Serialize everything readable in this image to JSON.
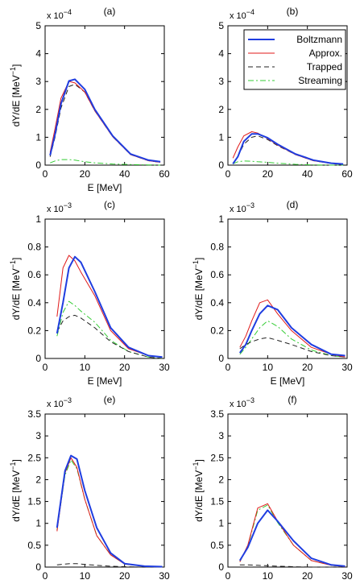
{
  "chart_data": [
    {
      "type": "line",
      "panel_label": "(a)",
      "xlabel": "E [MeV]",
      "ylabel": "dY/dE [MeV",
      "ylabel_sup": "−1",
      "ylabel_close": "]",
      "exponent_base": "x 10",
      "exponent_power": "−4",
      "xlim": [
        0,
        60
      ],
      "ylim": [
        0,
        5
      ],
      "xticks": [
        0,
        20,
        40,
        60
      ],
      "yticks": [
        0,
        1,
        2,
        3,
        4,
        5
      ],
      "series": [
        {
          "name": "Boltzmann",
          "color": "#1f3de0",
          "dash": "solid",
          "width": 2,
          "x": [
            2.5,
            5,
            8,
            12,
            15,
            20,
            25,
            34,
            43,
            52,
            58
          ],
          "y": [
            0.35,
            1.1,
            2.2,
            3.02,
            3.08,
            2.72,
            2.0,
            1.05,
            0.4,
            0.18,
            0.12
          ]
        },
        {
          "name": "Approx.",
          "color": "#e01a1a",
          "dash": "solid",
          "width": 1,
          "x": [
            2.5,
            5,
            8,
            12,
            15,
            20,
            25,
            34,
            43,
            52,
            58
          ],
          "y": [
            0.45,
            1.3,
            2.4,
            3.0,
            2.95,
            2.62,
            1.95,
            1.02,
            0.38,
            0.16,
            0.1
          ]
        },
        {
          "name": "Trapped",
          "color": "#222222",
          "dash": "6,4",
          "width": 1,
          "x": [
            2.5,
            5,
            8,
            12,
            15,
            20,
            25,
            34,
            43,
            52,
            58
          ],
          "y": [
            0.3,
            1.0,
            2.05,
            2.82,
            2.9,
            2.62,
            1.95,
            1.02,
            0.38,
            0.16,
            0.1
          ]
        },
        {
          "name": "Streaming",
          "color": "#33cc33",
          "dash": "7,3,2,3",
          "width": 1,
          "x": [
            2.5,
            5,
            8,
            12,
            15,
            20,
            25,
            34,
            43,
            52,
            58
          ],
          "y": [
            0.08,
            0.15,
            0.2,
            0.2,
            0.18,
            0.12,
            0.08,
            0.04,
            0.02,
            0.01,
            0.0
          ]
        }
      ]
    },
    {
      "type": "line",
      "panel_label": "(b)",
      "xlabel": "",
      "ylabel": "",
      "exponent_base": "x 10",
      "exponent_power": "−4",
      "xlim": [
        0,
        60
      ],
      "ylim": [
        0,
        5
      ],
      "xticks": [
        0,
        20,
        40,
        60
      ],
      "yticks": [
        0,
        1,
        2,
        3,
        4,
        5
      ],
      "legend": {
        "position": "top-right",
        "entries": [
          "Boltzmann",
          "Approx.",
          "Trapped",
          "Streaming"
        ]
      },
      "series": [
        {
          "name": "Boltzmann",
          "color": "#1f3de0",
          "dash": "solid",
          "width": 2,
          "x": [
            2.5,
            5,
            8,
            12,
            15,
            20,
            25,
            34,
            43,
            52,
            58
          ],
          "y": [
            0.05,
            0.3,
            0.85,
            1.12,
            1.12,
            0.98,
            0.75,
            0.4,
            0.18,
            0.07,
            0.04
          ]
        },
        {
          "name": "Approx.",
          "color": "#e01a1a",
          "dash": "solid",
          "width": 1,
          "x": [
            2.5,
            5,
            8,
            12,
            15,
            20,
            25,
            34,
            43,
            52,
            58
          ],
          "y": [
            0.25,
            0.65,
            1.05,
            1.2,
            1.15,
            0.95,
            0.72,
            0.38,
            0.16,
            0.06,
            0.03
          ]
        },
        {
          "name": "Trapped",
          "color": "#222222",
          "dash": "6,4",
          "width": 1,
          "x": [
            2.5,
            5,
            8,
            12,
            15,
            20,
            25,
            34,
            43,
            52,
            58
          ],
          "y": [
            0.05,
            0.3,
            0.75,
            1.0,
            1.05,
            0.92,
            0.7,
            0.38,
            0.16,
            0.06,
            0.03
          ]
        },
        {
          "name": "Streaming",
          "color": "#33cc33",
          "dash": "7,3,2,3",
          "width": 1,
          "x": [
            2.5,
            5,
            8,
            12,
            15,
            20,
            25,
            34,
            43,
            52,
            58
          ],
          "y": [
            0.05,
            0.12,
            0.15,
            0.14,
            0.12,
            0.1,
            0.07,
            0.03,
            0.01,
            0.0,
            0.0
          ]
        }
      ]
    },
    {
      "type": "line",
      "panel_label": "(c)",
      "xlabel": "E [MeV]",
      "ylabel": "dY/dE [MeV",
      "ylabel_sup": "−1",
      "ylabel_close": "]",
      "exponent_base": "x 10",
      "exponent_power": "−3",
      "xlim": [
        0,
        30
      ],
      "ylim": [
        0,
        1
      ],
      "xticks": [
        0,
        10,
        20,
        30
      ],
      "yticks": [
        0,
        0.2,
        0.4,
        0.6,
        0.8,
        1
      ],
      "series": [
        {
          "name": "Boltzmann",
          "color": "#1f3de0",
          "dash": "solid",
          "width": 2,
          "x": [
            3,
            4.5,
            6,
            7.5,
            9,
            12.5,
            16.5,
            21,
            26,
            29.5
          ],
          "y": [
            0.18,
            0.4,
            0.65,
            0.73,
            0.69,
            0.48,
            0.22,
            0.08,
            0.02,
            0.01
          ]
        },
        {
          "name": "Approx.",
          "color": "#e01a1a",
          "dash": "solid",
          "width": 1,
          "x": [
            3,
            4.5,
            6,
            7.5,
            9,
            12.5,
            16.5,
            21,
            26,
            29.5
          ],
          "y": [
            0.3,
            0.65,
            0.74,
            0.7,
            0.62,
            0.45,
            0.2,
            0.07,
            0.02,
            0.01
          ]
        },
        {
          "name": "Trapped",
          "color": "#222222",
          "dash": "6,4",
          "width": 1,
          "x": [
            3,
            4.5,
            6,
            7.5,
            9,
            12.5,
            16.5,
            21,
            26,
            29.5
          ],
          "y": [
            0.19,
            0.27,
            0.3,
            0.31,
            0.29,
            0.22,
            0.12,
            0.05,
            0.01,
            0.0
          ]
        },
        {
          "name": "Streaming",
          "color": "#33cc33",
          "dash": "7,3,2,3",
          "width": 1,
          "x": [
            3,
            4.5,
            6,
            7.5,
            9,
            12.5,
            16.5,
            21,
            26,
            29.5
          ],
          "y": [
            0.16,
            0.33,
            0.41,
            0.38,
            0.34,
            0.26,
            0.13,
            0.05,
            0.01,
            0.0
          ]
        }
      ]
    },
    {
      "type": "line",
      "panel_label": "(d)",
      "xlabel": "E [MeV]",
      "ylabel": "dY/dE [MeV",
      "ylabel_sup": "−1",
      "ylabel_close": "]",
      "exponent_base": "x 10",
      "exponent_power": "−3",
      "xlim": [
        0,
        30
      ],
      "ylim": [
        0,
        1
      ],
      "xticks": [
        0,
        10,
        20,
        30
      ],
      "yticks": [
        0,
        0.2,
        0.4,
        0.6,
        0.8,
        1
      ],
      "series": [
        {
          "name": "Boltzmann",
          "color": "#1f3de0",
          "dash": "solid",
          "width": 2,
          "x": [
            3,
            4.5,
            6,
            8,
            10,
            12.5,
            16,
            21,
            26,
            29.5
          ],
          "y": [
            0.04,
            0.1,
            0.2,
            0.32,
            0.38,
            0.35,
            0.22,
            0.1,
            0.03,
            0.02
          ]
        },
        {
          "name": "Approx.",
          "color": "#e01a1a",
          "dash": "solid",
          "width": 1,
          "x": [
            3,
            4.5,
            6,
            8,
            10,
            12.5,
            16,
            21,
            26,
            29.5
          ],
          "y": [
            0.08,
            0.16,
            0.27,
            0.4,
            0.42,
            0.32,
            0.2,
            0.08,
            0.03,
            0.01
          ]
        },
        {
          "name": "Trapped",
          "color": "#222222",
          "dash": "6,4",
          "width": 1,
          "x": [
            3,
            4.5,
            6,
            8,
            10,
            12.5,
            16,
            21,
            26,
            29.5
          ],
          "y": [
            0.07,
            0.1,
            0.12,
            0.14,
            0.15,
            0.13,
            0.1,
            0.05,
            0.02,
            0.01
          ]
        },
        {
          "name": "Streaming",
          "color": "#33cc33",
          "dash": "7,3,2,3",
          "width": 1,
          "x": [
            3,
            4.5,
            6,
            8,
            10,
            12.5,
            16,
            21,
            26,
            29.5
          ],
          "y": [
            0.03,
            0.08,
            0.14,
            0.22,
            0.27,
            0.23,
            0.14,
            0.06,
            0.02,
            0.01
          ]
        }
      ]
    },
    {
      "type": "line",
      "panel_label": "(e)",
      "xlabel": "E [MeV]",
      "ylabel": "dY/dE [MeV",
      "ylabel_sup": "−1",
      "ylabel_close": "]",
      "exponent_base": "x 10",
      "exponent_power": "−3",
      "xlim": [
        0,
        30
      ],
      "ylim": [
        0,
        3.5
      ],
      "xticks": [
        0,
        10,
        20,
        30
      ],
      "yticks": [
        0,
        0.5,
        1,
        1.5,
        2,
        2.5,
        3,
        3.5
      ],
      "series": [
        {
          "name": "Boltzmann",
          "color": "#1f3de0",
          "dash": "solid",
          "width": 2,
          "x": [
            3,
            5,
            6.5,
            8,
            10,
            13,
            16.5,
            20,
            25,
            29.5
          ],
          "y": [
            0.9,
            2.2,
            2.55,
            2.47,
            1.75,
            0.9,
            0.32,
            0.08,
            0.02,
            0.01
          ]
        },
        {
          "name": "Approx.",
          "color": "#e01a1a",
          "dash": "solid",
          "width": 1,
          "x": [
            3,
            5,
            6.5,
            8,
            10,
            13,
            16.5,
            20,
            25,
            29.5
          ],
          "y": [
            0.82,
            2.15,
            2.5,
            2.28,
            1.55,
            0.72,
            0.28,
            0.07,
            0.02,
            0.01
          ]
        },
        {
          "name": "Trapped",
          "color": "#222222",
          "dash": "6,4",
          "width": 1,
          "x": [
            3,
            5,
            6.5,
            8,
            10,
            13,
            16.5,
            20,
            25,
            29.5
          ],
          "y": [
            0.05,
            0.07,
            0.08,
            0.08,
            0.06,
            0.04,
            0.02,
            0.01,
            0.0,
            0.0
          ]
        },
        {
          "name": "Streaming",
          "color": "#33cc33",
          "dash": "7,3,2,3",
          "width": 1,
          "x": [
            3,
            5,
            6.5,
            8,
            10,
            13,
            16.5,
            20,
            25,
            29.5
          ],
          "y": [
            0.85,
            2.1,
            2.45,
            2.25,
            1.55,
            0.72,
            0.28,
            0.07,
            0.02,
            0.01
          ]
        }
      ]
    },
    {
      "type": "line",
      "panel_label": "(f)",
      "xlabel": "E [MeV]",
      "ylabel": "dY/dE [MeV",
      "ylabel_sup": "−1",
      "ylabel_close": "]",
      "exponent_base": "x 10",
      "exponent_power": "−3",
      "xlim": [
        0,
        30
      ],
      "ylim": [
        0,
        3.5
      ],
      "xticks": [
        0,
        10,
        20,
        30
      ],
      "yticks": [
        0,
        0.5,
        1,
        1.5,
        2,
        2.5,
        3,
        3.5
      ],
      "series": [
        {
          "name": "Boltzmann",
          "color": "#1f3de0",
          "dash": "solid",
          "width": 2,
          "x": [
            3,
            5,
            7.5,
            10,
            12.5,
            16.5,
            21,
            26,
            29.5
          ],
          "y": [
            0.15,
            0.45,
            1.0,
            1.3,
            1.05,
            0.6,
            0.2,
            0.05,
            0.02
          ]
        },
        {
          "name": "Approx.",
          "color": "#e01a1a",
          "dash": "solid",
          "width": 1,
          "x": [
            3,
            5,
            7.5,
            10,
            12.5,
            16.5,
            21,
            26,
            29.5
          ],
          "y": [
            0.12,
            0.5,
            1.35,
            1.45,
            1.05,
            0.5,
            0.15,
            0.04,
            0.01
          ]
        },
        {
          "name": "Trapped",
          "color": "#222222",
          "dash": "6,4",
          "width": 1,
          "x": [
            3,
            5,
            7.5,
            10,
            12.5,
            16.5,
            21,
            26,
            29.5
          ],
          "y": [
            0.05,
            0.05,
            0.04,
            0.03,
            0.02,
            0.01,
            0.0,
            0.0,
            0.0
          ]
        },
        {
          "name": "Streaming",
          "color": "#33cc33",
          "dash": "7,3,2,3",
          "width": 1,
          "x": [
            3,
            5,
            7.5,
            10,
            12.5,
            16.5,
            21,
            26,
            29.5
          ],
          "y": [
            0.12,
            0.48,
            1.3,
            1.42,
            1.02,
            0.5,
            0.15,
            0.04,
            0.01
          ]
        }
      ]
    }
  ]
}
